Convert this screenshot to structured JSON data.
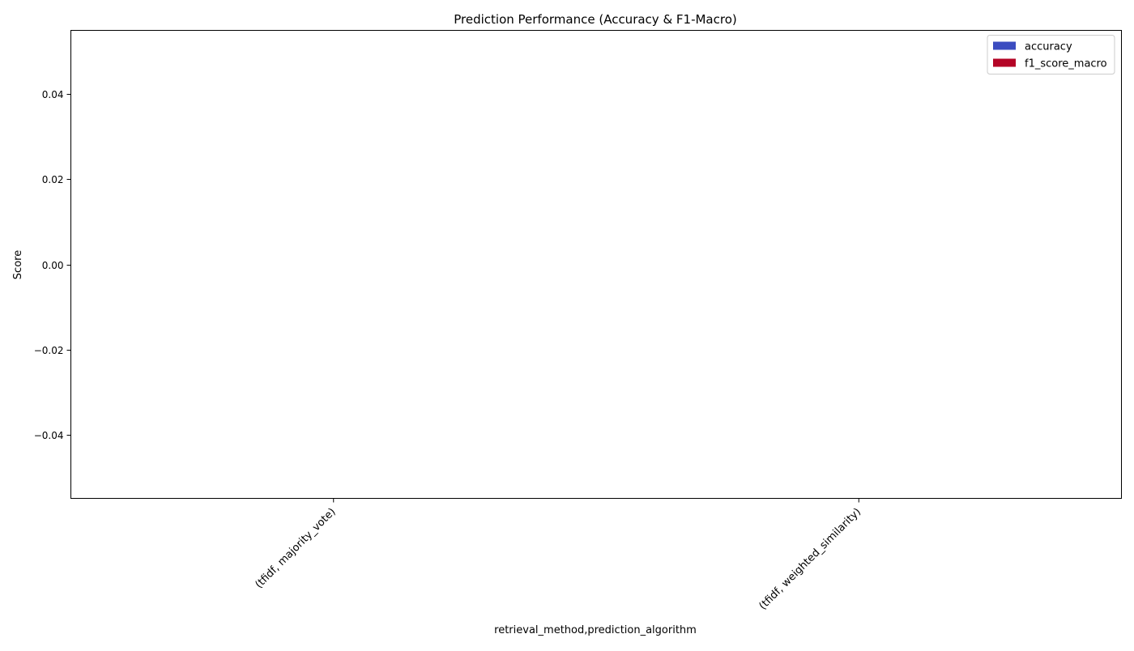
{
  "chart_data": {
    "type": "bar",
    "title": "Prediction Performance (Accuracy & F1-Macro)",
    "xlabel": "retrieval_method,prediction_algorithm",
    "ylabel": "Score",
    "categories": [
      "(tfidf, majority_vote)",
      "(tfidf, weighted_similarity)"
    ],
    "series": [
      {
        "name": "accuracy",
        "values": [
          0,
          0
        ],
        "color": "#3b4cc0"
      },
      {
        "name": "f1_score_macro",
        "values": [
          0,
          0
        ],
        "color": "#b40426"
      }
    ],
    "ylim": [
      -0.055,
      0.055
    ],
    "yticks": [
      -0.04,
      -0.02,
      0.0,
      0.02,
      0.04
    ],
    "ytick_labels": [
      "−0.04",
      "−0.02",
      "0.00",
      "0.02",
      "0.04"
    ],
    "grid": false,
    "legend_position": "top-right"
  }
}
